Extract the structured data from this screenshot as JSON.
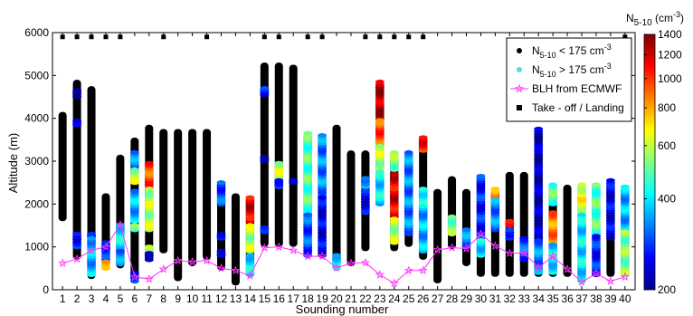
{
  "chart_data": {
    "type": "scatter",
    "xlabel": "Sounding number",
    "ylabel": "Altitude (m)",
    "xlim": [
      0.3,
      40.7
    ],
    "ylim": [
      0,
      6000
    ],
    "x_ticks": [
      "1",
      "2",
      "3",
      "4",
      "5",
      "6",
      "7",
      "8",
      "9",
      "10",
      "11",
      "12",
      "13",
      "14",
      "15",
      "16",
      "17",
      "18",
      "19",
      "20",
      "21",
      "22",
      "23",
      "24",
      "25",
      "26",
      "27",
      "28",
      "29",
      "30",
      "31",
      "32",
      "33",
      "34",
      "35",
      "36",
      "37",
      "38",
      "39",
      "40"
    ],
    "y_ticks": [
      0,
      1000,
      2000,
      3000,
      4000,
      5000,
      6000
    ],
    "grid": false,
    "colorbar": {
      "title_main": "N",
      "title_sub": "5-10",
      "title_unit": " (cm",
      "title_sup": "-3",
      "title_end": ")",
      "scale": "log",
      "range": [
        200,
        1400
      ],
      "ticks": [
        200,
        400,
        600,
        800,
        1000,
        1200,
        1400
      ],
      "colors": [
        "#00008f",
        "#0000ff",
        "#0080ff",
        "#00ffff",
        "#80ff80",
        "#ffff00",
        "#ff8000",
        "#ff0000",
        "#800000"
      ]
    },
    "legend": {
      "placement": "top-right",
      "entries": [
        {
          "marker": "dot-black",
          "main": "N",
          "sub": "5-10",
          "rest": " < 175 cm",
          "sup": "-3"
        },
        {
          "marker": "dot-cyan",
          "main": "N",
          "sub": "5-10",
          "rest": " > 175 cm",
          "sup": "-3"
        },
        {
          "marker": "star-line",
          "main": "BLH from ECMWF",
          "sub": "",
          "rest": "",
          "sup": ""
        },
        {
          "marker": "square",
          "main": "Take - off / Landing",
          "sub": "",
          "rest": "",
          "sup": ""
        }
      ]
    },
    "profiles": [
      {
        "n": 1,
        "bottom": 1600,
        "top": 4150,
        "segments": []
      },
      {
        "n": 2,
        "bottom": 700,
        "top": 4900,
        "segments": [
          [
            4500,
            4650,
            0.05
          ],
          [
            3850,
            3950,
            0.05
          ],
          [
            1000,
            1300,
            0.15
          ]
        ]
      },
      {
        "n": 3,
        "bottom": 250,
        "top": 4750,
        "segments": [
          [
            1250,
            1300,
            0.1
          ],
          [
            350,
            1200,
            0.3
          ]
        ]
      },
      {
        "n": 4,
        "bottom": 450,
        "top": 2250,
        "segments": [
          [
            1000,
            1100,
            0.2
          ],
          [
            700,
            950,
            0.15
          ],
          [
            500,
            650,
            0.75
          ]
        ]
      },
      {
        "n": 5,
        "bottom": 500,
        "top": 3150,
        "segments": [
          [
            950,
            1500,
            0.35
          ],
          [
            600,
            900,
            0.25
          ]
        ]
      },
      {
        "n": 6,
        "bottom": 200,
        "top": 3550,
        "segments": [
          [
            2900,
            3200,
            0.25
          ],
          [
            2500,
            2800,
            0.55
          ],
          [
            1600,
            2300,
            0.3
          ],
          [
            1400,
            1500,
            0.5
          ],
          [
            200,
            400,
            0.15
          ]
        ]
      },
      {
        "n": 7,
        "bottom": 700,
        "top": 3850,
        "segments": [
          [
            2400,
            2950,
            0.8
          ],
          [
            1400,
            2350,
            0.55
          ],
          [
            900,
            1000,
            0.5
          ],
          [
            700,
            850,
            0.1
          ]
        ]
      },
      {
        "n": 8,
        "bottom": 850,
        "top": 3750,
        "segments": []
      },
      {
        "n": 9,
        "bottom": 200,
        "top": 3750,
        "segments": []
      },
      {
        "n": 10,
        "bottom": 550,
        "top": 3750,
        "segments": []
      },
      {
        "n": 11,
        "bottom": 700,
        "top": 3750,
        "segments": []
      },
      {
        "n": 12,
        "bottom": 450,
        "top": 2550,
        "segments": [
          [
            2000,
            2500,
            0.2
          ],
          [
            1200,
            1300,
            0.1
          ],
          [
            800,
            900,
            0.15
          ]
        ]
      },
      {
        "n": 13,
        "bottom": 100,
        "top": 2250,
        "segments": []
      },
      {
        "n": 14,
        "bottom": 300,
        "top": 2150,
        "segments": [
          [
            1600,
            2150,
            0.9
          ],
          [
            900,
            1500,
            0.55
          ],
          [
            350,
            800,
            0.35
          ]
        ]
      },
      {
        "n": 15,
        "bottom": 1000,
        "top": 5300,
        "segments": [
          [
            4550,
            4700,
            0.15
          ],
          [
            3000,
            3100,
            0.1
          ],
          [
            1350,
            1450,
            0.1
          ]
        ]
      },
      {
        "n": 16,
        "bottom": 1000,
        "top": 5300,
        "segments": [
          [
            2600,
            2950,
            0.55
          ],
          [
            2400,
            2550,
            0.2
          ]
        ]
      },
      {
        "n": 17,
        "bottom": 1000,
        "top": 5250,
        "segments": [
          [
            2500,
            2550,
            0.1
          ]
        ]
      },
      {
        "n": 18,
        "bottom": 800,
        "top": 3650,
        "segments": [
          [
            1800,
            3650,
            0.45
          ],
          [
            800,
            1750,
            0.2
          ]
        ]
      },
      {
        "n": 19,
        "bottom": 800,
        "top": 3650,
        "segments": [
          [
            2200,
            3600,
            0.25
          ],
          [
            800,
            2150,
            0.1
          ]
        ]
      },
      {
        "n": 20,
        "bottom": 450,
        "top": 3850,
        "segments": [
          [
            500,
            800,
            0.35
          ]
        ]
      },
      {
        "n": 21,
        "bottom": 550,
        "top": 3250,
        "segments": []
      },
      {
        "n": 22,
        "bottom": 900,
        "top": 3250,
        "segments": [
          [
            2400,
            2600,
            0.3
          ],
          [
            1800,
            2300,
            0.1
          ]
        ]
      },
      {
        "n": 23,
        "bottom": 1950,
        "top": 4850,
        "segments": [
          [
            4000,
            4850,
            0.95
          ],
          [
            3400,
            3950,
            0.8
          ],
          [
            2800,
            3350,
            0.55
          ],
          [
            2000,
            2750,
            0.35
          ]
        ]
      },
      {
        "n": 24,
        "bottom": 900,
        "top": 3200,
        "segments": [
          [
            2800,
            3200,
            0.5
          ],
          [
            1700,
            2700,
            0.9
          ],
          [
            1100,
            1650,
            0.55
          ]
        ]
      },
      {
        "n": 25,
        "bottom": 1000,
        "top": 3200,
        "segments": [
          [
            1300,
            3200,
            0.25
          ]
        ]
      },
      {
        "n": 26,
        "bottom": 700,
        "top": 3550,
        "segments": [
          [
            3250,
            3550,
            0.85
          ],
          [
            2000,
            2350,
            0.4
          ],
          [
            900,
            1950,
            0.3
          ]
        ]
      },
      {
        "n": 27,
        "bottom": 150,
        "top": 2350,
        "segments": []
      },
      {
        "n": 28,
        "bottom": 950,
        "top": 2650,
        "segments": [
          [
            1300,
            1700,
            0.5
          ]
        ]
      },
      {
        "n": 29,
        "bottom": 550,
        "top": 2350,
        "segments": [
          [
            1000,
            1400,
            0.25
          ]
        ]
      },
      {
        "n": 30,
        "bottom": 300,
        "top": 2650,
        "segments": [
          [
            1200,
            2650,
            0.15
          ],
          [
            800,
            1150,
            0.35
          ]
        ]
      },
      {
        "n": 31,
        "bottom": 300,
        "top": 2350,
        "segments": [
          [
            2150,
            2350,
            0.75
          ],
          [
            1400,
            2100,
            0.25
          ]
        ]
      },
      {
        "n": 32,
        "bottom": 300,
        "top": 2750,
        "segments": [
          [
            1500,
            1600,
            0.8
          ],
          [
            1200,
            1400,
            0.2
          ]
        ]
      },
      {
        "n": 33,
        "bottom": 300,
        "top": 2750,
        "segments": [
          [
            700,
            1200,
            0.2
          ]
        ]
      },
      {
        "n": 34,
        "bottom": 300,
        "top": 3750,
        "segments": [
          [
            1200,
            3750,
            0.05
          ],
          [
            400,
            1150,
            0.25
          ]
        ]
      },
      {
        "n": 35,
        "bottom": 300,
        "top": 2450,
        "segments": [
          [
            2000,
            2450,
            0.45
          ],
          [
            1100,
            1800,
            0.75
          ],
          [
            400,
            1050,
            0.35
          ]
        ]
      },
      {
        "n": 36,
        "bottom": 300,
        "top": 2450,
        "segments": []
      },
      {
        "n": 37,
        "bottom": 150,
        "top": 2450,
        "segments": [
          [
            1800,
            2450,
            0.6
          ],
          [
            200,
            1750,
            0.35
          ]
        ]
      },
      {
        "n": 38,
        "bottom": 300,
        "top": 2450,
        "segments": [
          [
            1300,
            2450,
            0.45
          ],
          [
            350,
            1250,
            0.15
          ]
        ]
      },
      {
        "n": 39,
        "bottom": 300,
        "top": 2550,
        "segments": [
          [
            1200,
            2550,
            0.1
          ]
        ]
      },
      {
        "n": 40,
        "bottom": 300,
        "top": 2400,
        "segments": [
          [
            1400,
            2400,
            0.3
          ],
          [
            350,
            1350,
            0.5
          ]
        ]
      }
    ],
    "blh": {
      "x": [
        1,
        2,
        3,
        4,
        5,
        6,
        7,
        8,
        9,
        10,
        11,
        12,
        13,
        14,
        15,
        16,
        17,
        18,
        19,
        20,
        21,
        22,
        23,
        24,
        25,
        26,
        27,
        28,
        29,
        30,
        31,
        32,
        33,
        34,
        35,
        36,
        37,
        38,
        39,
        40
      ],
      "y": [
        620,
        720,
        920,
        1000,
        1520,
        300,
        250,
        480,
        680,
        650,
        680,
        500,
        450,
        330,
        980,
        1000,
        920,
        780,
        780,
        510,
        620,
        630,
        350,
        150,
        450,
        450,
        930,
        980,
        960,
        1300,
        1020,
        850,
        860,
        520,
        780,
        480,
        180,
        380,
        200,
        300
      ]
    },
    "takeoff_landing_altitude": 5900
  }
}
